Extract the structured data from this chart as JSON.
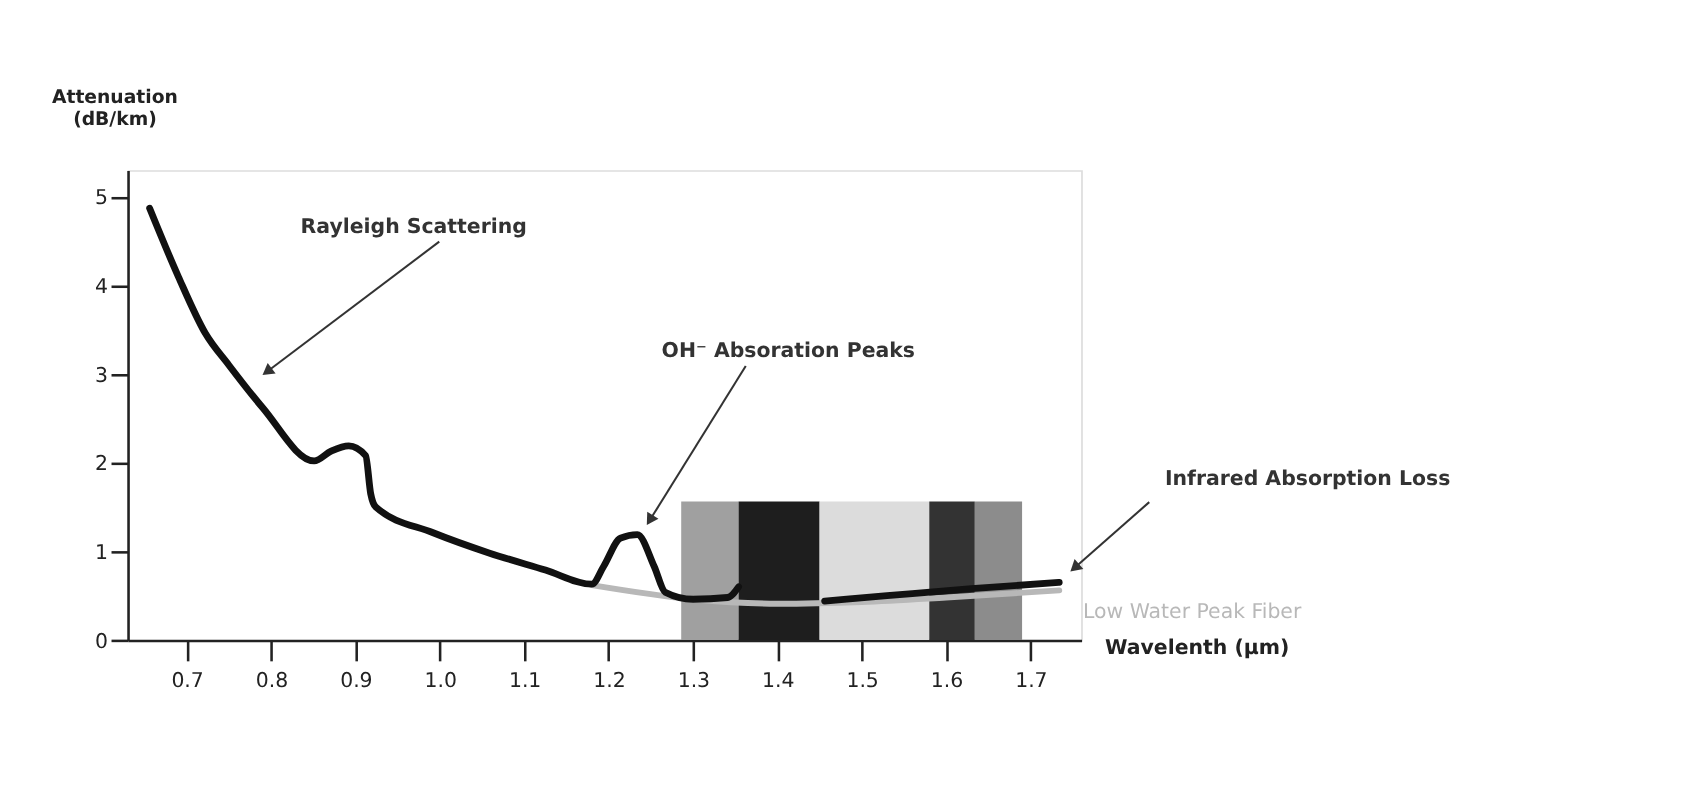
{
  "chart_data": {
    "type": "line",
    "xlabel": "Wavelenth (µm)",
    "ylabel": "Attenuation (dB/km)",
    "xlim": [
      0.63,
      1.76
    ],
    "ylim": [
      0,
      5.3
    ],
    "xticks": [
      0.7,
      0.8,
      0.9,
      {
        "value": 1.0,
        "label": "1.0"
      },
      1.1,
      1.2,
      1.3,
      1.4,
      1.5,
      1.6,
      1.7
    ],
    "yticks": [
      0,
      1,
      2,
      3,
      4,
      5
    ],
    "grid": false,
    "legend": false,
    "marker": "none",
    "line_style": "solid",
    "series": [
      {
        "name": "Low Water Peak Fiber",
        "color": "#b8b8b8",
        "x": [
          1.18,
          1.3,
          1.4,
          1.5,
          1.6,
          1.734
        ],
        "values": [
          0.62,
          0.46,
          0.41,
          0.43,
          0.48,
          0.56
        ]
      },
      {
        "color": "#111111",
        "x": [
          0.656,
          0.69,
          0.722,
          0.75,
          0.79,
          0.851,
          0.871,
          0.892,
          0.912,
          0.918,
          0.924,
          0.992,
          1.059,
          1.125,
          1.18,
          1.194,
          1.214,
          1.234,
          1.254,
          1.267,
          1.3,
          1.341,
          1.354,
          1.4,
          1.456,
          1.53,
          1.63,
          1.734
        ],
        "values": [
          4.87,
          4.1,
          3.46,
          3.1,
          2.62,
          2.02,
          2.13,
          2.19,
          2.08,
          1.65,
          1.5,
          1.21,
          0.98,
          0.79,
          0.63,
          0.83,
          1.15,
          1.19,
          0.83,
          0.54,
          0.46,
          0.48,
          0.6,
          null,
          0.44,
          0.5,
          0.58,
          0.65
        ]
      }
    ],
    "bands": [
      {
        "axis": "x",
        "from": 1.286,
        "to": 1.354,
        "color": "#a0a0a0"
      },
      {
        "axis": "x",
        "from": 1.354,
        "to": 1.45,
        "color": "#1e1e1e"
      },
      {
        "axis": "x",
        "from": 1.45,
        "to": 1.58,
        "color": "#dcdcdc"
      },
      {
        "axis": "x",
        "from": 1.58,
        "to": 1.634,
        "color": "#333333"
      },
      {
        "axis": "x",
        "from": 1.634,
        "to": 1.69,
        "color": "#8c8c8c"
      }
    ],
    "annotations": [
      {
        "text": "Rayleigh Scattering",
        "x": 0.797,
        "y": 3.04
      },
      {
        "text": "OH⁻ Absoration Peaks",
        "x": 1.25,
        "y": 1.37
      },
      {
        "text": "Infrared Absorption Loss",
        "x": 1.754,
        "y": 0.83
      }
    ]
  }
}
